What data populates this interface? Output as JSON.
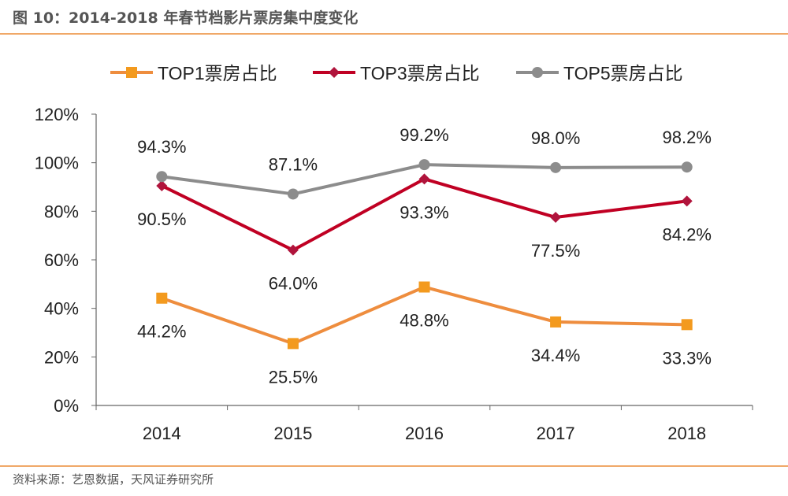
{
  "header": {
    "title": "图 10：2014-2018 年春节档影片票房集中度变化"
  },
  "footer": {
    "source": "资料来源：艺恩数据，天风证券研究所"
  },
  "chart_data": {
    "type": "line",
    "title": "",
    "xlabel": "",
    "ylabel": "",
    "categories": [
      "2014",
      "2015",
      "2016",
      "2017",
      "2018"
    ],
    "ylim": [
      0,
      120
    ],
    "yticks": [
      "0%",
      "20%",
      "40%",
      "60%",
      "80%",
      "100%",
      "120%"
    ],
    "grid": false,
    "legend_position": "top",
    "series": [
      {
        "name": "TOP1票房占比",
        "values": [
          44.2,
          25.5,
          48.8,
          34.4,
          33.3
        ],
        "labels": [
          "44.2%",
          "25.5%",
          "48.8%",
          "34.4%",
          "33.3%"
        ],
        "color": "#EE8D3E",
        "marker_color": "#F39A1E",
        "marker": "square",
        "label_side": "below"
      },
      {
        "name": "TOP3票房占比",
        "values": [
          90.5,
          64.0,
          93.3,
          77.5,
          84.2
        ],
        "labels": [
          "90.5%",
          "64.0%",
          "93.3%",
          "77.5%",
          "84.2%"
        ],
        "color": "#C00023",
        "marker_color": "#B0143C",
        "marker": "diamond",
        "label_side": "below"
      },
      {
        "name": "TOP5票房占比",
        "values": [
          94.3,
          87.1,
          99.2,
          98.0,
          98.2
        ],
        "labels": [
          "94.3%",
          "87.1%",
          "99.2%",
          "98.0%",
          "98.2%"
        ],
        "color": "#8C8C8C",
        "marker_color": "#8C8C8C",
        "marker": "circle",
        "label_side": "above"
      }
    ]
  }
}
